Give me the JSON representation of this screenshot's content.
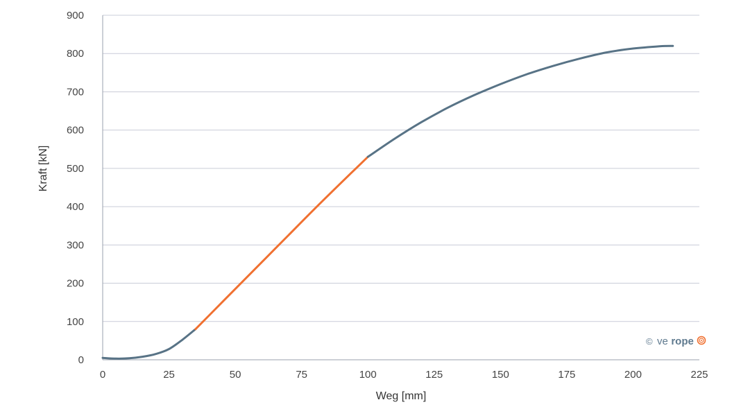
{
  "chart_data": {
    "type": "line",
    "title": "",
    "xlabel": "Weg [mm]",
    "ylabel": "Kraft [kN]",
    "xlim": [
      0,
      225
    ],
    "ylim": [
      0,
      900
    ],
    "xticks": [
      0,
      25,
      50,
      75,
      100,
      125,
      150,
      175,
      200,
      225
    ],
    "yticks": [
      0,
      100,
      200,
      300,
      400,
      500,
      600,
      700,
      800,
      900
    ],
    "grid": "horizontal",
    "series": [
      {
        "color": "#587386",
        "x": [
          0,
          5,
          10,
          15,
          20,
          25,
          30,
          35
        ],
        "y": [
          5,
          3,
          4,
          8,
          15,
          28,
          52,
          80
        ]
      },
      {
        "color": "#f07030",
        "x": [
          35,
          40,
          50,
          60,
          70,
          80,
          90,
          100
        ],
        "y": [
          80,
          115,
          185,
          255,
          325,
          395,
          463,
          530
        ]
      },
      {
        "color": "#587386",
        "x": [
          100,
          110,
          120,
          130,
          140,
          150,
          160,
          170,
          180,
          190,
          200,
          210,
          215
        ],
        "y": [
          530,
          577,
          620,
          658,
          691,
          720,
          746,
          768,
          787,
          803,
          813,
          819,
          820
        ]
      }
    ]
  },
  "watermark": {
    "copyright": "©",
    "brand_light": "ve",
    "brand_bold": "rope",
    "brand_color": "#5f7a8f",
    "accent_color": "#f07030"
  }
}
